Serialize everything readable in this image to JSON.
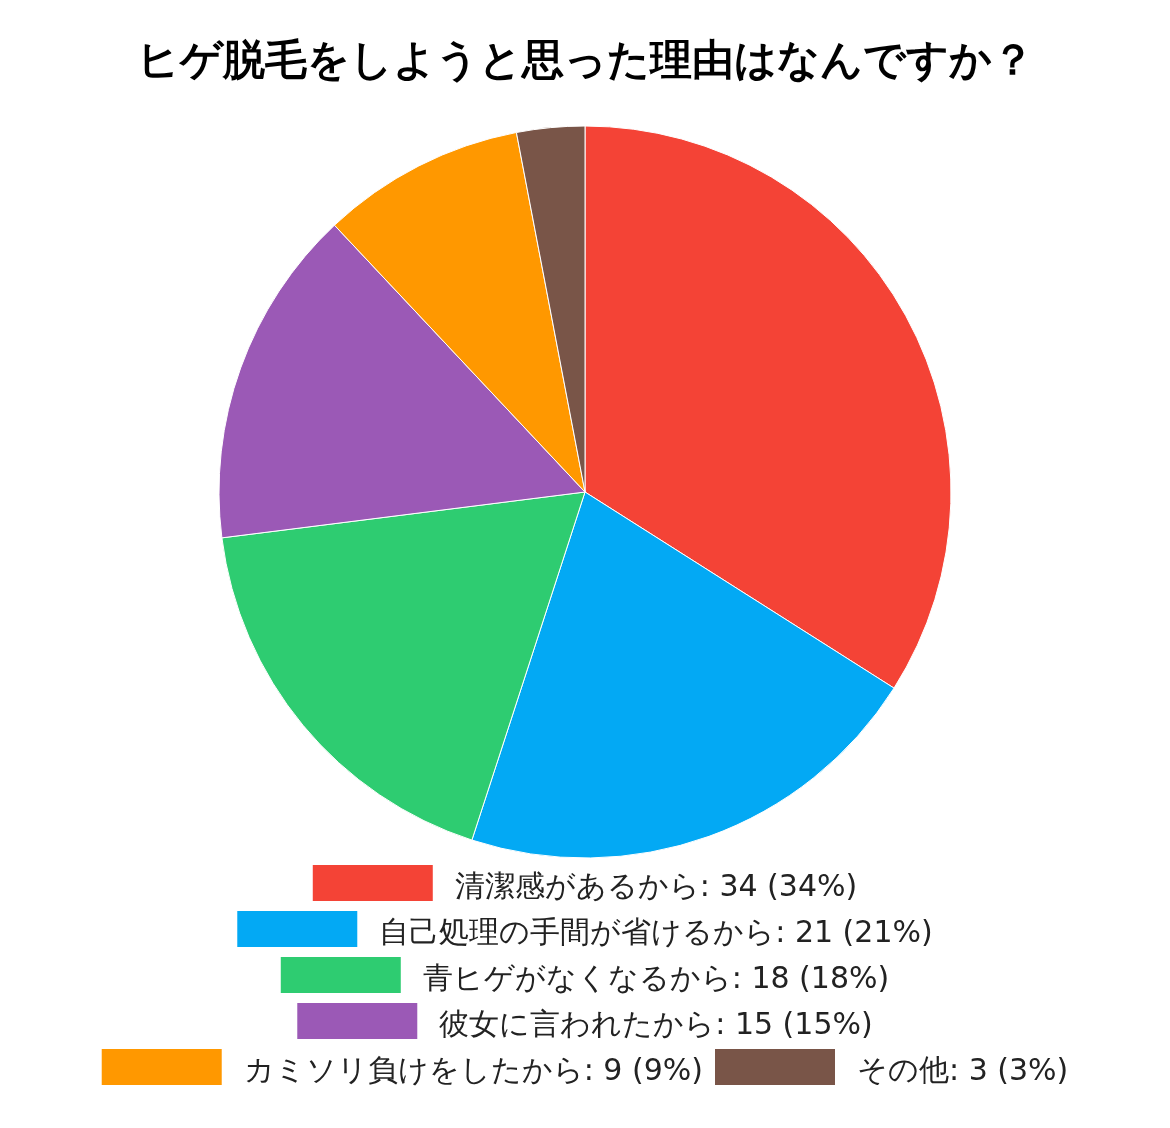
{
  "chart_data": {
    "type": "pie",
    "title": "ヒゲ脱毛をしようと思った理由はなんですか？",
    "categories": [
      "清潔感があるから",
      "自己処理の手間が省けるから",
      "青ヒゲがなくなるから",
      "彼女に言われたから",
      "カミソリ負けをしたから",
      "その他"
    ],
    "values": [
      34,
      21,
      18,
      15,
      9,
      3
    ],
    "value_labels": [
      "34 (34%)",
      "21 (21%)",
      "18 (18%)",
      "15 (15%)",
      "9 (9%)",
      "3 (3%)"
    ],
    "colors": [
      "#f44336",
      "#03a9f4",
      "#2ecc71",
      "#9b59b6",
      "#ff9800",
      "#795548"
    ],
    "legend": "bottom"
  }
}
